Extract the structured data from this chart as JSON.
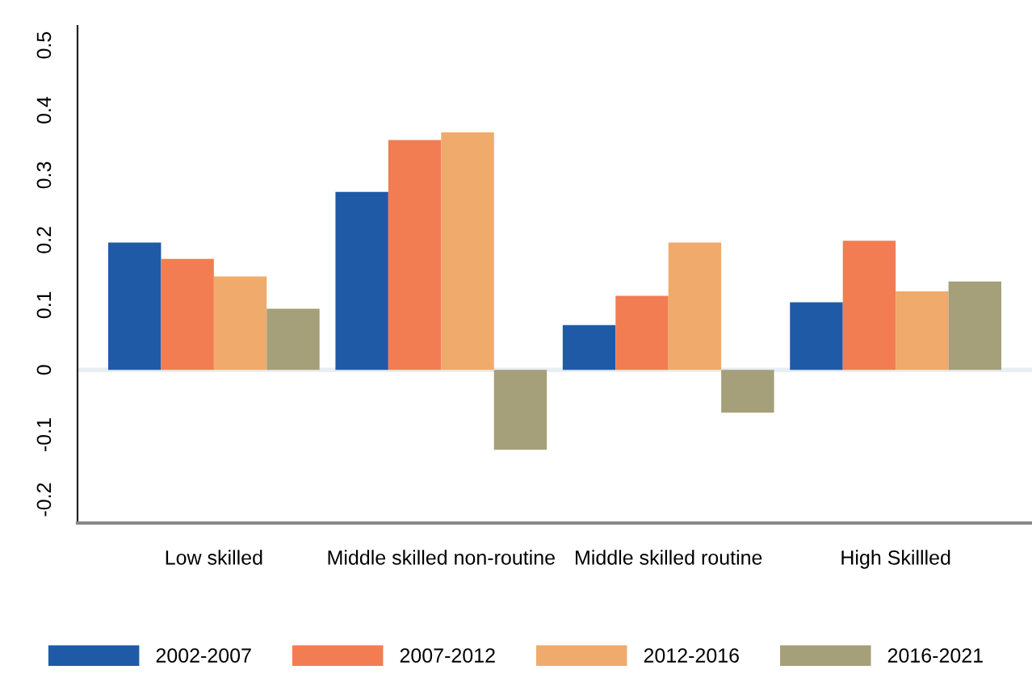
{
  "chart_data": {
    "type": "bar",
    "categories": [
      "Low skilled",
      "Middle skilled non-routine",
      "Middle skilled routine",
      "High Skillled"
    ],
    "series": [
      {
        "name": "2002-2007",
        "color": "#1f5aa6",
        "values": [
          0.196,
          0.274,
          0.069,
          0.104
        ]
      },
      {
        "name": "2007-2012",
        "color": "#f27d52",
        "values": [
          0.171,
          0.354,
          0.114,
          0.199
        ]
      },
      {
        "name": "2012-2016",
        "color": "#f0aa6b",
        "values": [
          0.144,
          0.366,
          0.196,
          0.121
        ]
      },
      {
        "name": "2016-2021",
        "color": "#a59f7a",
        "values": [
          0.094,
          -0.123,
          -0.066,
          0.136
        ]
      }
    ],
    "ylim": [
      -0.236,
      0.53
    ],
    "yticks": [
      -0.2,
      -0.1,
      0,
      0.1,
      0.2,
      0.3,
      0.4,
      0.5
    ],
    "ref_lines": [
      {
        "axis": "y",
        "value": 0,
        "color": "#e8eef2"
      }
    ],
    "grid": false,
    "legend": "bottom"
  }
}
